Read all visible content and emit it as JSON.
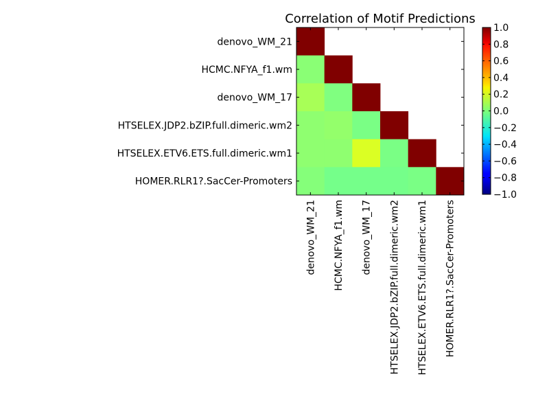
{
  "chart_data": {
    "type": "heatmap",
    "title": "Correlation of Motif Predictions",
    "xlabel": "",
    "ylabel": "",
    "labels": [
      "denovo_WM_21",
      "HCMC.NFYA_f1.wm",
      "denovo_WM_17",
      "HTSELEX.JDP2.bZIP.full.dimeric.wm2",
      "HTSELEX.ETV6.ETS.full.dimeric.wm1",
      "HOMER.RLR1?.SacCer-Promoters"
    ],
    "matrix": [
      [
        1.0,
        null,
        null,
        null,
        null,
        null
      ],
      [
        0.02,
        1.0,
        null,
        null,
        null,
        null
      ],
      [
        0.08,
        0.0,
        1.0,
        null,
        null,
        null
      ],
      [
        0.03,
        0.04,
        -0.01,
        1.0,
        null,
        null
      ],
      [
        0.03,
        0.03,
        0.18,
        -0.01,
        1.0,
        null
      ],
      [
        0.01,
        -0.02,
        -0.02,
        -0.02,
        -0.01,
        1.0
      ]
    ],
    "colorbar": {
      "range": [
        -1.0,
        1.0
      ],
      "ticks": [
        "1.0",
        "0.8",
        "0.6",
        "0.4",
        "0.2",
        "0.0",
        "−0.2",
        "−0.4",
        "−0.6",
        "−0.8",
        "−1.0"
      ],
      "colormap": "jet"
    },
    "grid": false,
    "legend": "colorbar-right"
  }
}
